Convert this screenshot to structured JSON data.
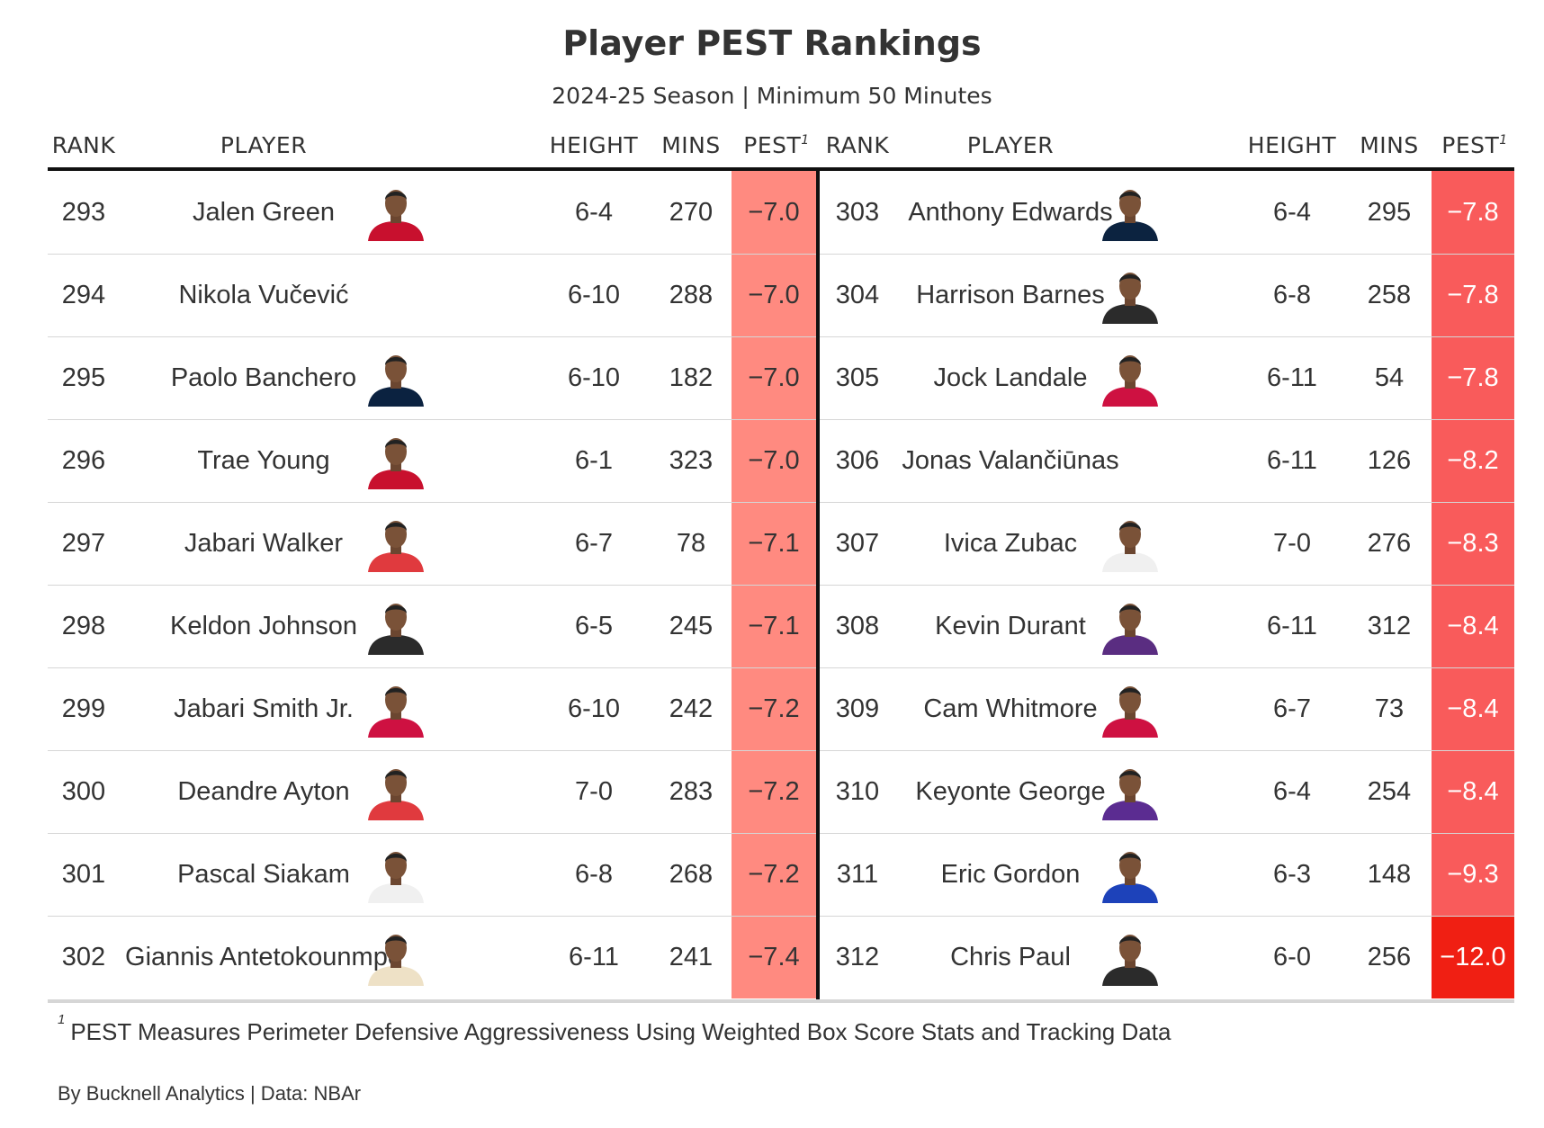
{
  "title": "Player PEST Rankings",
  "subtitle": "2024-25 Season | Minimum 50 Minutes",
  "headers": {
    "rank": "RANK",
    "player": "PLAYER",
    "height": "HEIGHT",
    "mins": "MINS",
    "pest": "PEST",
    "footnote_marker": "1"
  },
  "chart_data": {
    "type": "table",
    "columns": [
      "RANK",
      "PLAYER",
      "HEIGHT",
      "MINS",
      "PEST"
    ],
    "left_rows": [
      {
        "rank": "293",
        "player": "Jalen Green",
        "height": "6-4",
        "mins": "270",
        "pest": "−7.0",
        "pest_value": -7.0,
        "photo": true,
        "jersey": "#c8102e"
      },
      {
        "rank": "294",
        "player": "Nikola Vučević",
        "height": "6-10",
        "mins": "288",
        "pest": "−7.0",
        "pest_value": -7.0,
        "photo": false,
        "jersey": "#c8102e"
      },
      {
        "rank": "295",
        "player": "Paolo Banchero",
        "height": "6-10",
        "mins": "182",
        "pest": "−7.0",
        "pest_value": -7.0,
        "photo": true,
        "jersey": "#0b2240"
      },
      {
        "rank": "296",
        "player": "Trae Young",
        "height": "6-1",
        "mins": "323",
        "pest": "−7.0",
        "pest_value": -7.0,
        "photo": true,
        "jersey": "#c8102e"
      },
      {
        "rank": "297",
        "player": "Jabari Walker",
        "height": "6-7",
        "mins": "78",
        "pest": "−7.1",
        "pest_value": -7.1,
        "photo": true,
        "jersey": "#e03a3e"
      },
      {
        "rank": "298",
        "player": "Keldon Johnson",
        "height": "6-5",
        "mins": "245",
        "pest": "−7.1",
        "pest_value": -7.1,
        "photo": true,
        "jersey": "#2b2b2b"
      },
      {
        "rank": "299",
        "player": "Jabari Smith Jr.",
        "height": "6-10",
        "mins": "242",
        "pest": "−7.2",
        "pest_value": -7.2,
        "photo": true,
        "jersey": "#ce1141"
      },
      {
        "rank": "300",
        "player": "Deandre Ayton",
        "height": "7-0",
        "mins": "283",
        "pest": "−7.2",
        "pest_value": -7.2,
        "photo": true,
        "jersey": "#e03a3e"
      },
      {
        "rank": "301",
        "player": "Pascal Siakam",
        "height": "6-8",
        "mins": "268",
        "pest": "−7.2",
        "pest_value": -7.2,
        "photo": true,
        "jersey": "#f0f0f0"
      },
      {
        "rank": "302",
        "player": "Giannis Antetokounmpo",
        "height": "6-11",
        "mins": "241",
        "pest": "−7.4",
        "pest_value": -7.4,
        "photo": true,
        "jersey": "#eee1c6"
      }
    ],
    "right_rows": [
      {
        "rank": "303",
        "player": "Anthony Edwards",
        "height": "6-4",
        "mins": "295",
        "pest": "−7.8",
        "pest_value": -7.8,
        "photo": true,
        "jersey": "#0c2340"
      },
      {
        "rank": "304",
        "player": "Harrison Barnes",
        "height": "6-8",
        "mins": "258",
        "pest": "−7.8",
        "pest_value": -7.8,
        "photo": true,
        "jersey": "#2b2b2b"
      },
      {
        "rank": "305",
        "player": "Jock Landale",
        "height": "6-11",
        "mins": "54",
        "pest": "−7.8",
        "pest_value": -7.8,
        "photo": true,
        "jersey": "#ce1141"
      },
      {
        "rank": "306",
        "player": "Jonas Valančiūnas",
        "height": "6-11",
        "mins": "126",
        "pest": "−8.2",
        "pest_value": -8.2,
        "photo": false,
        "jersey": "#002b5c"
      },
      {
        "rank": "307",
        "player": "Ivica Zubac",
        "height": "7-0",
        "mins": "276",
        "pest": "−8.3",
        "pest_value": -8.3,
        "photo": true,
        "jersey": "#f0f0f0"
      },
      {
        "rank": "308",
        "player": "Kevin Durant",
        "height": "6-11",
        "mins": "312",
        "pest": "−8.4",
        "pest_value": -8.4,
        "photo": true,
        "jersey": "#5a2d81"
      },
      {
        "rank": "309",
        "player": "Cam Whitmore",
        "height": "6-7",
        "mins": "73",
        "pest": "−8.4",
        "pest_value": -8.4,
        "photo": true,
        "jersey": "#ce1141"
      },
      {
        "rank": "310",
        "player": "Keyonte George",
        "height": "6-4",
        "mins": "254",
        "pest": "−8.4",
        "pest_value": -8.4,
        "photo": true,
        "jersey": "#5b2c91"
      },
      {
        "rank": "311",
        "player": "Eric Gordon",
        "height": "6-3",
        "mins": "148",
        "pest": "−9.3",
        "pest_value": -9.3,
        "photo": true,
        "jersey": "#1d42ba"
      },
      {
        "rank": "312",
        "player": "Chris Paul",
        "height": "6-0",
        "mins": "256",
        "pest": "−12.0",
        "pest_value": -12.0,
        "photo": true,
        "jersey": "#2b2b2b"
      }
    ],
    "color_scale": {
      "light": "#ff8a80",
      "mid": "#f95b5b",
      "dark": "#f01f13"
    }
  },
  "footnote": {
    "marker": "1",
    "text": "PEST Measures Perimeter Defensive Aggressiveness Using Weighted Box Score Stats and Tracking Data"
  },
  "credit": "By Bucknell Analytics | Data: NBAr"
}
